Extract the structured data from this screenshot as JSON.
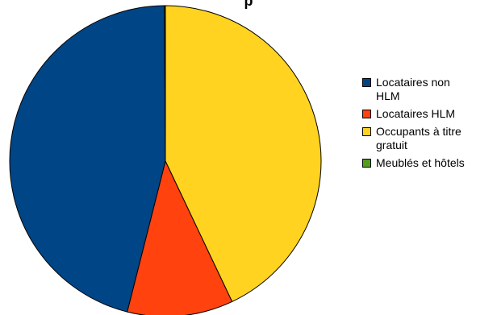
{
  "chart_data": {
    "type": "pie",
    "title": "",
    "title_visible_fragment": "p",
    "categories": [
      "Locataires non HLM",
      "Locataires HLM",
      "Occupants à titre gratuit",
      "Meublés et hôtels"
    ],
    "values": [
      46,
      11,
      43,
      0.1
    ],
    "colors": [
      "#004586",
      "#ff420e",
      "#ffd320",
      "#579d1c"
    ],
    "legend_lines": [
      [
        "Locataires non",
        "HLM"
      ],
      [
        "Locataires HLM"
      ],
      [
        "Occupants à titre",
        "gratuit"
      ],
      [
        "Meublés et hôtels"
      ]
    ],
    "legend_position": "right"
  }
}
